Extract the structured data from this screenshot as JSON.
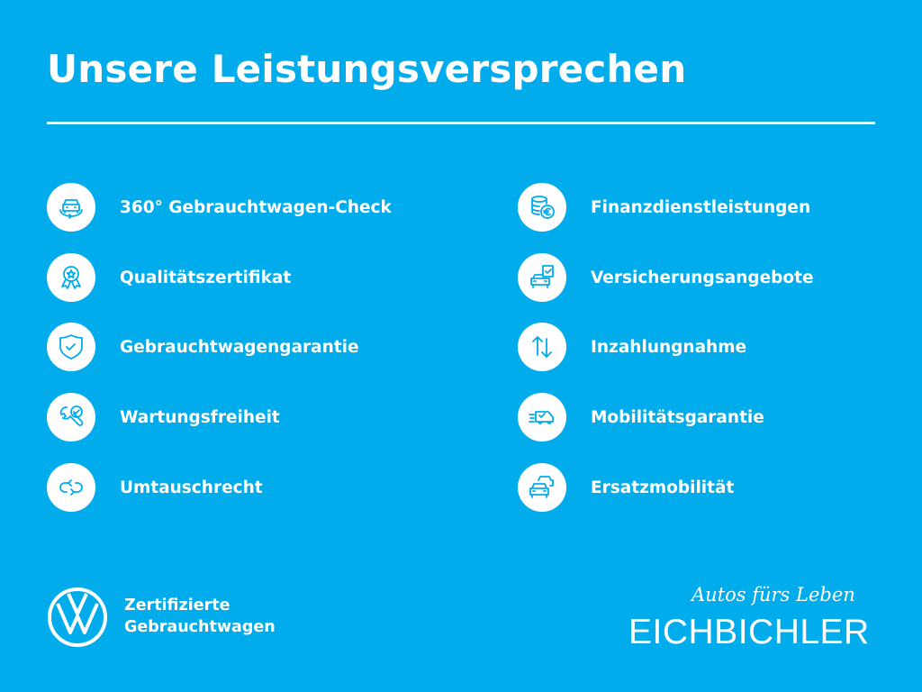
{
  "title": "Unsere Leistungsversprechen",
  "left_items": [
    {
      "label": "360° Gebrauchtwagen-Check",
      "icon": "car-360-icon"
    },
    {
      "label": "Qualitätszertifikat",
      "icon": "award-badge-icon"
    },
    {
      "label": "Gebrauchtwagengarantie",
      "icon": "shield-check-icon"
    },
    {
      "label": "Wartungsfreiheit",
      "icon": "wrench-check-icon"
    },
    {
      "label": "Umtauschrecht",
      "icon": "exchange-arrows-icon"
    }
  ],
  "right_items": [
    {
      "label": "Finanzdienstleistungen",
      "icon": "coins-euro-icon"
    },
    {
      "label": "Versicherungsangebote",
      "icon": "car-document-icon"
    },
    {
      "label": "Inzahlungnahme",
      "icon": "up-down-arrows-icon"
    },
    {
      "label": "Mobilitätsgarantie",
      "icon": "van-moving-icon"
    },
    {
      "label": "Ersatzmobilität",
      "icon": "cars-stack-icon"
    }
  ],
  "footer": {
    "cert_line1": "Zertifizierte",
    "cert_line2": "Gebrauchtwagen",
    "slogan": "Autos fürs Leben",
    "brand": "EICHBICHLER"
  },
  "colors": {
    "background": "#00acec",
    "foreground": "#ffffff"
  }
}
